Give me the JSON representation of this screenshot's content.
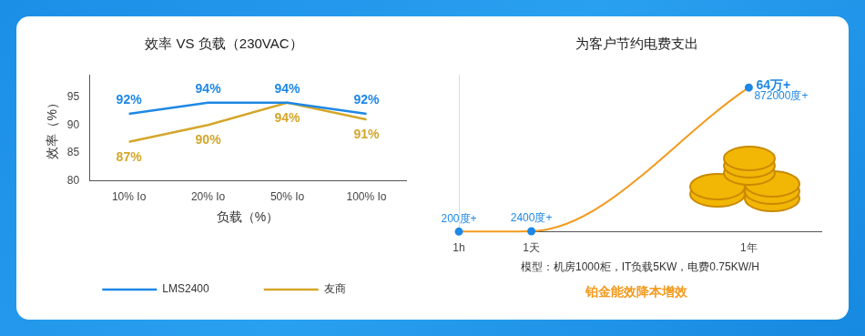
{
  "chart_data": [
    {
      "type": "line",
      "title": "效率 VS 负载（230VAC）",
      "x_label": "负载（%）",
      "y_label": "效率（%）",
      "categories": [
        "10% Io",
        "20% Io",
        "50% Io",
        "100% Io"
      ],
      "series": [
        {
          "name": "LMS2400",
          "color": "#1e88e5",
          "values": [
            92,
            94,
            94,
            92
          ],
          "value_labels": [
            "92%",
            "94%",
            "94%",
            "92%"
          ]
        },
        {
          "name": "友商",
          "color": "#d4a62a",
          "values": [
            87,
            90,
            94,
            91
          ],
          "value_labels": [
            "87%",
            "90%",
            "94%",
            "91%"
          ]
        }
      ],
      "ylim": [
        80,
        99
      ],
      "yticks": [
        80,
        85,
        90,
        95
      ],
      "grid": false,
      "legend": "bottom",
      "data_labels": true,
      "marker": "none"
    },
    {
      "type": "line",
      "title": "为客户节约电费支出",
      "subtitle": "铂金能效降本增效",
      "x_label": "模型：机房1000柜，IT负载5KW，电费0.75KW/H",
      "categories": [
        "1h",
        "1天",
        null,
        null,
        "1年",
        null
      ],
      "series": [
        {
          "color": "#f39a1e",
          "values": [
            200,
            2400,
            null,
            null,
            872000,
            null
          ],
          "value_labels": [
            "200度+",
            "2400度+",
            null,
            null,
            "872000度+",
            null
          ],
          "marker": "circle"
        }
      ],
      "ylim": [
        0,
        950000
      ],
      "grid": false,
      "tick_labels": "x",
      "data_labels": true,
      "annotations": [
        "64万+"
      ]
    }
  ]
}
